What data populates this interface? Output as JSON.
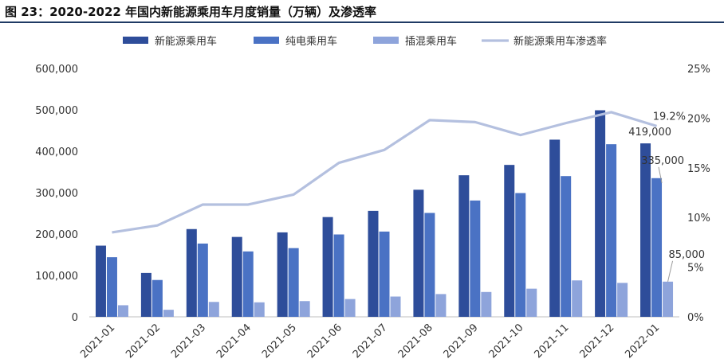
{
  "figure": {
    "title": "图 23：2020-2022 年国内新能源乘用车月度销量（万辆）及渗透率"
  },
  "colors": {
    "nev": "#2e4d9a",
    "bev": "#4a72c4",
    "phev": "#8ea4db",
    "penetration": "#b4c0df",
    "rule": "#1f3a64"
  },
  "chart_data": {
    "type": "bar",
    "categories": [
      "2021-01",
      "2021-02",
      "2021-03",
      "2021-04",
      "2021-05",
      "2021-06",
      "2021-07",
      "2021-08",
      "2021-09",
      "2021-10",
      "2021-11",
      "2021-12",
      "2022-01"
    ],
    "series": [
      {
        "name": "新能源乘用车",
        "type": "bar",
        "axis": "left",
        "values": [
          172000,
          106000,
          212000,
          193000,
          204000,
          241000,
          256000,
          307000,
          342000,
          367000,
          428000,
          499000,
          419000
        ]
      },
      {
        "name": "纯电乘用车",
        "type": "bar",
        "axis": "left",
        "values": [
          144000,
          89000,
          177000,
          158000,
          166000,
          199000,
          206000,
          251000,
          281000,
          299000,
          340000,
          417000,
          335000
        ]
      },
      {
        "name": "插混乘用车",
        "type": "bar",
        "axis": "left",
        "values": [
          28000,
          17000,
          36000,
          35000,
          38000,
          43000,
          49000,
          55000,
          60000,
          68000,
          88000,
          82000,
          85000
        ]
      },
      {
        "name": "新能源乘用车渗透率",
        "type": "line",
        "axis": "right",
        "values": [
          8.5,
          9.2,
          11.3,
          11.3,
          12.3,
          15.5,
          16.8,
          19.8,
          19.6,
          18.3,
          19.5,
          20.6,
          19.2
        ]
      }
    ],
    "y_left": {
      "ticks": [
        "0",
        "100,000",
        "200,000",
        "300,000",
        "400,000",
        "500,000",
        "600,000"
      ],
      "ylim": [
        0,
        600000
      ]
    },
    "y_right": {
      "ticks": [
        "0%",
        "5%",
        "10%",
        "15%",
        "20%",
        "25%"
      ],
      "ylim": [
        0,
        25
      ]
    },
    "annotations": [
      {
        "text": "19.2%",
        "series": "新能源乘用车渗透率",
        "category": "2022-01"
      },
      {
        "text": "419,000",
        "series": "新能源乘用车",
        "category": "2022-01"
      },
      {
        "text": "335,000",
        "series": "纯电乘用车",
        "category": "2022-01"
      },
      {
        "text": "85,000",
        "series": "插混乘用车",
        "category": "2022-01"
      }
    ],
    "legend_position": "top",
    "grid": false
  }
}
